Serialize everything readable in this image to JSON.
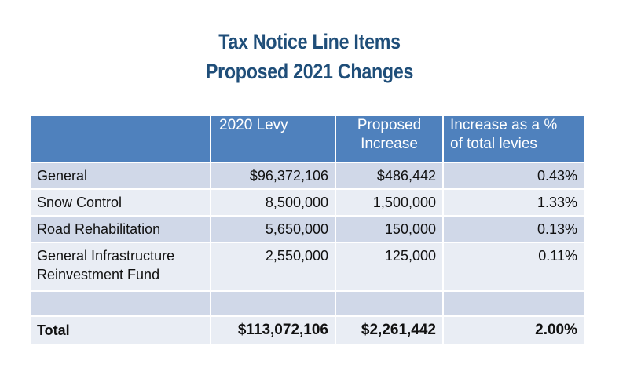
{
  "title": {
    "line1": "Tax Notice Line Items",
    "line2": "Proposed 2021 Changes"
  },
  "table": {
    "headers": {
      "item": "",
      "levy_2020": "2020 Levy",
      "proposed_increase_1": "Proposed",
      "proposed_increase_2": "Increase",
      "pct_1": "Increase as a %",
      "pct_2": "of total levies"
    },
    "rows": [
      {
        "item": "General",
        "levy_2020": "$96,372,106",
        "increase": "$486,442",
        "pct": "0.43%"
      },
      {
        "item": "Snow Control",
        "levy_2020": "8,500,000",
        "increase": "1,500,000",
        "pct": "1.33%"
      },
      {
        "item": "Road Rehabilitation",
        "levy_2020": "5,650,000",
        "increase": "150,000",
        "pct": "0.13%"
      },
      {
        "item_1": "General Infrastructure",
        "item_2": "Reinvestment Fund",
        "levy_2020": "2,550,000",
        "increase": "125,000",
        "pct": "0.11%"
      }
    ],
    "total": {
      "item": "Total",
      "levy_2020": "$113,072,106",
      "increase": "$2,261,442",
      "pct": "2.00%"
    }
  },
  "colors": {
    "title": "#1f4e79",
    "header_bg": "#4f81bd",
    "row_dark": "#d0d8e8",
    "row_light": "#e9edf4"
  }
}
